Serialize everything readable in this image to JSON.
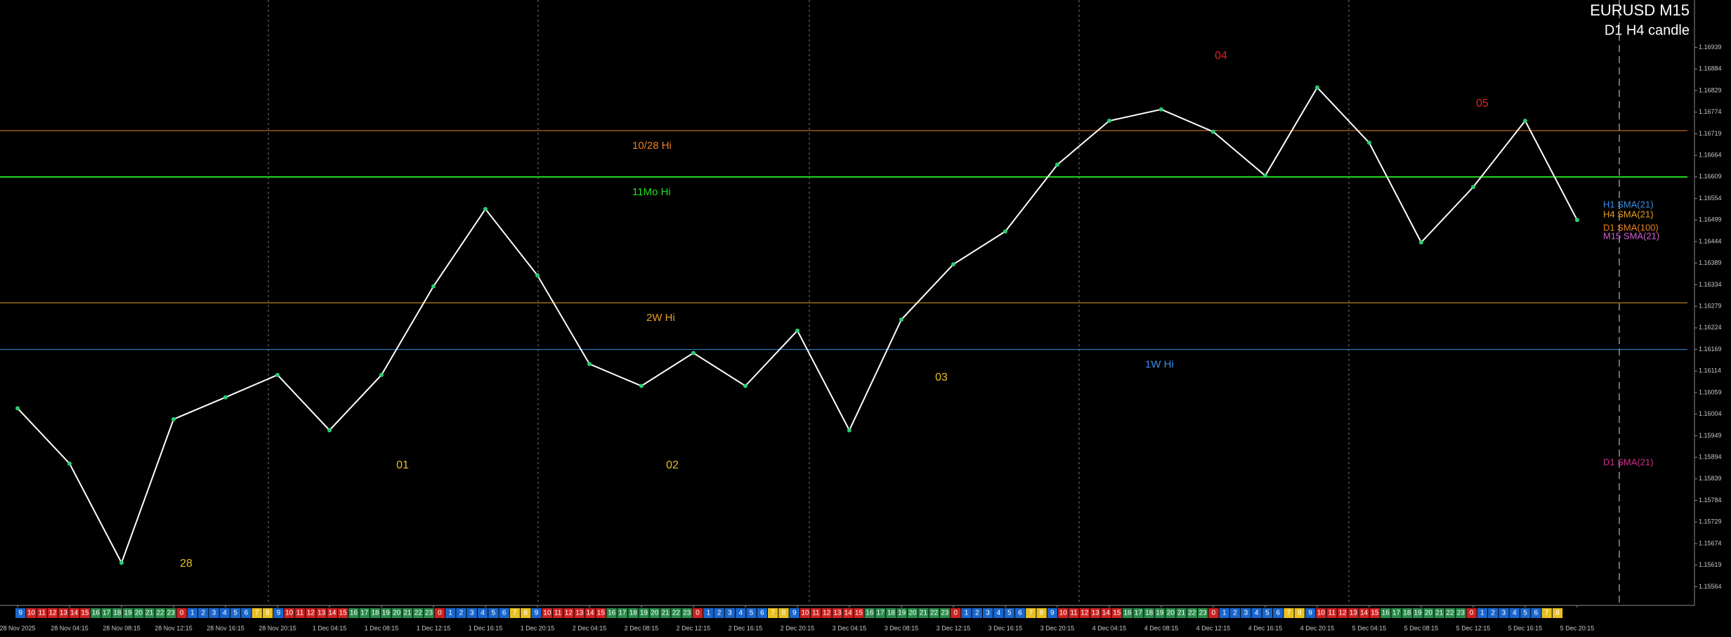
{
  "chart_data": {
    "type": "line",
    "title": "EURUSD M15",
    "subtitle": "D1 H4 candle",
    "categories": [
      "28 Nov 2025",
      "28 Nov 04:15",
      "28 Nov 08:15",
      "28 Nov 12:15",
      "28 Nov 16:15",
      "28 Nov 20:15",
      "1 Dec 04:15",
      "1 Dec 08:15",
      "1 Dec 12:15",
      "1 Dec 16:15",
      "1 Dec 20:15",
      "2 Dec 04:15",
      "2 Dec 08:15",
      "2 Dec 12:15",
      "2 Dec 16:15",
      "2 Dec 20:15",
      "3 Dec 04:15",
      "3 Dec 08:15",
      "3 Dec 12:15",
      "3 Dec 16:15",
      "3 Dec 20:15",
      "4 Dec 04:15",
      "4 Dec 08:15",
      "4 Dec 12:15",
      "4 Dec 16:15",
      "4 Dec 20:15",
      "5 Dec 04:15",
      "5 Dec 08:15",
      "5 Dec 12:15",
      "5 Dec 16:15",
      "5 Dec 20:15"
    ],
    "values": [
      1.16019,
      1.15878,
      1.15625,
      1.15991,
      1.16047,
      1.16104,
      1.15963,
      1.16104,
      1.1633,
      1.16527,
      1.16358,
      1.16132,
      1.16076,
      1.1616,
      1.16076,
      1.16217,
      1.15963,
      1.16245,
      1.16386,
      1.1647,
      1.1664,
      1.16752,
      1.16781,
      1.16724,
      1.16612,
      1.16837,
      1.16696,
      1.16442,
      1.16583,
      1.16752,
      1.16499
    ],
    "color": "#ffffff",
    "ylim": [
      1.1552,
      1.1706
    ],
    "yticks": [
      1.15564,
      1.15619,
      1.15674,
      1.15729,
      1.15784,
      1.15839,
      1.15894,
      1.15949,
      1.16004,
      1.16059,
      1.16114,
      1.16169,
      1.16224,
      1.16279,
      1.16334,
      1.16389,
      1.16444,
      1.16499,
      1.16554,
      1.16609,
      1.16664,
      1.16719,
      1.16774,
      1.16829,
      1.16884,
      1.16939
    ],
    "levels": [
      {
        "label": "10/28 Hi",
        "value": 1.16727,
        "color": "#e8821e"
      },
      {
        "label": "11Mo Hi",
        "value": 1.16609,
        "color": "#22dd22"
      },
      {
        "label": "2W Hi",
        "value": 1.16288,
        "color": "#e8a020"
      },
      {
        "label": "1W Hi",
        "value": 1.16169,
        "color": "#3a8ee6"
      }
    ],
    "annotations": [
      "01",
      "02",
      "03",
      "04",
      "05",
      "28"
    ],
    "indicators": [
      {
        "label": "H1 SMA(21)",
        "color": "#3a8ee6"
      },
      {
        "label": "H4 SMA(21)",
        "color": "#e8a020"
      },
      {
        "label": "D1 SMA(100)",
        "color": "#e8821e"
      },
      {
        "label": "M15 SMA(21)",
        "color": "#d060d0"
      },
      {
        "label": "D1 SMA(21)",
        "color": "#d0308a"
      }
    ],
    "hour_strip": [
      "9",
      "10",
      "11",
      "12",
      "13",
      "14",
      "15",
      "16",
      "17",
      "18",
      "19",
      "20",
      "21",
      "22",
      "23",
      "0",
      "1",
      "2",
      "3",
      "4",
      "5",
      "6",
      "7",
      "8"
    ]
  }
}
